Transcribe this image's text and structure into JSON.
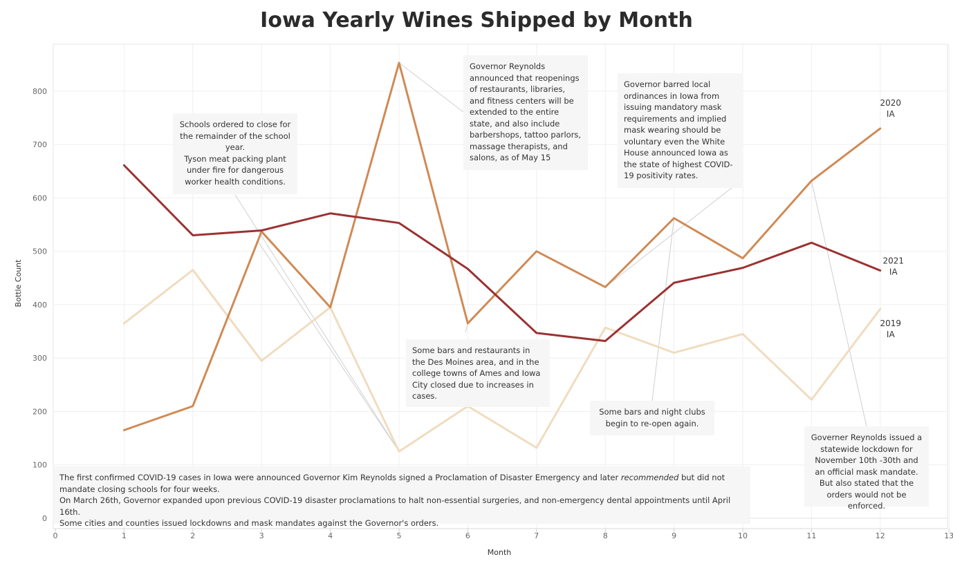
{
  "chart_data": {
    "type": "line",
    "title": "Iowa Yearly Wines Shipped by Month",
    "xlabel": "Month",
    "ylabel": "Bottle Count",
    "xlim": [
      0,
      13
    ],
    "ylim": [
      -10,
      900
    ],
    "x_ticks": [
      0,
      1,
      2,
      3,
      4,
      5,
      6,
      7,
      8,
      9,
      10,
      11,
      12,
      13
    ],
    "y_ticks": [
      0,
      100,
      200,
      300,
      400,
      500,
      600,
      700,
      800
    ],
    "grid": true,
    "x": [
      1,
      2,
      3,
      4,
      5,
      6,
      7,
      8,
      9,
      10,
      11,
      12
    ],
    "series": [
      {
        "name": "2019",
        "region": "IA",
        "color": "#f0dcbf",
        "values": [
          365,
          465,
          295,
          395,
          125,
          210,
          132,
          357,
          310,
          345,
          222,
          392
        ]
      },
      {
        "name": "2020",
        "region": "IA",
        "color": "#cf8a55",
        "values": [
          165,
          210,
          537,
          395,
          853,
          365,
          500,
          433,
          562,
          487,
          632,
          730
        ]
      },
      {
        "name": "2021",
        "region": "IA",
        "color": "#9b3232",
        "values": [
          661,
          530,
          539,
          571,
          553,
          467,
          347,
          332,
          441,
          469,
          516,
          464
        ]
      }
    ],
    "annotations": [
      {
        "id": "a-march",
        "text": "Schools ordered to close for the remainder of the school year.\nTyson meat packing plant under fire for dangerous worker health conditions."
      },
      {
        "id": "a-may",
        "text": "Governor Reynolds announced that reopenings of restaurants, libraries, and fitness centers will be extended to the entire state, and also include barbershops, tattoo parlors, massage therapists, and salons, as of May 15"
      },
      {
        "id": "a-aug",
        "text": "Governor barred local ordinances in Iowa from issuing mandatory mask requirements and implied mask wearing should be voluntary even the White House announced Iowa as the state of highest COVID-19 positivity rates."
      },
      {
        "id": "a-june",
        "text": "Some bars and restaurants in the Des Moines area, and in the college towns of Ames and Iowa City closed due to increases in cases."
      },
      {
        "id": "a-sept",
        "text": "Some bars and night clubs begin to re-open again."
      },
      {
        "id": "a-nov",
        "text": "Governer Reynolds issued a statewide lockdown for November 10th -30th and an official mask mandate. But also stated that the orders would not be enforced."
      },
      {
        "id": "a-bottom",
        "text_before": "The first confirmed COVID-19 cases in Iowa were announced  Governor Kim Reynolds signed a Proclamation of Disaster Emergency and later ",
        "text_em": "recommended",
        "text_after": "  but did not mandate closing schools for four weeks.",
        "line2": "On March 26th, Governor expanded upon previous COVID-19 disaster proclamations to halt non-essential surgeries, and non-emergency dental appointments until April 16th.",
        "line3": "Some cities and counties issued lockdowns and mask mandates against the Governor's orders."
      }
    ]
  }
}
